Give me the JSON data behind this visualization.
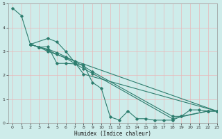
{
  "title": "",
  "xlabel": "Humidex (Indice chaleur)",
  "ylabel": "",
  "bg_color": "#ceecea",
  "grid_color": "#b0d8d4",
  "line_color": "#2d7d6e",
  "xlim": [
    -0.5,
    23
  ],
  "ylim": [
    0,
    5
  ],
  "xticks": [
    0,
    1,
    2,
    3,
    4,
    5,
    6,
    7,
    8,
    9,
    10,
    11,
    12,
    13,
    14,
    15,
    16,
    17,
    18,
    19,
    20,
    21,
    22,
    23
  ],
  "yticks": [
    0,
    1,
    2,
    3,
    4,
    5
  ],
  "series": [
    {
      "x": [
        0,
        1,
        2,
        3,
        4,
        5,
        6,
        7,
        8,
        9,
        10,
        11,
        12,
        13,
        14,
        15,
        16,
        17,
        18,
        19,
        20,
        21,
        22,
        23
      ],
      "y": [
        4.82,
        4.5,
        3.3,
        3.18,
        3.2,
        2.5,
        2.5,
        2.48,
        2.45,
        1.7,
        1.45,
        0.25,
        0.13,
        0.5,
        0.18,
        0.18,
        0.12,
        0.12,
        0.12,
        0.28,
        0.55,
        0.55,
        0.5,
        0.5
      ]
    },
    {
      "x": [
        2,
        4,
        5,
        6,
        7,
        8,
        23
      ],
      "y": [
        3.3,
        3.55,
        3.4,
        3.0,
        2.55,
        2.05,
        0.5
      ]
    },
    {
      "x": [
        2,
        3,
        4,
        5,
        6,
        7,
        8,
        9,
        18,
        19,
        22,
        23
      ],
      "y": [
        3.3,
        3.18,
        3.1,
        2.95,
        2.78,
        2.58,
        2.38,
        2.15,
        0.28,
        0.28,
        0.5,
        0.5
      ]
    },
    {
      "x": [
        2,
        3,
        4,
        5,
        6,
        7,
        8,
        9,
        18,
        22,
        23
      ],
      "y": [
        3.3,
        3.18,
        3.05,
        2.88,
        2.72,
        2.5,
        2.28,
        2.08,
        0.18,
        0.5,
        0.5
      ]
    },
    {
      "x": [
        2,
        3,
        4,
        23
      ],
      "y": [
        3.3,
        3.18,
        3.0,
        0.5
      ]
    }
  ]
}
